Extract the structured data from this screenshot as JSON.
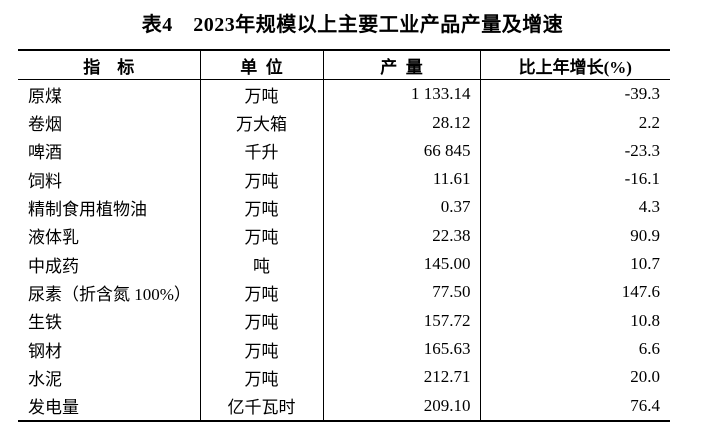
{
  "page": {
    "background_color": "#ffffff",
    "text_color": "#000000"
  },
  "title": "表4　2023年规模以上主要工业产品产量及增速",
  "table": {
    "headers": {
      "indicator": "指    标",
      "unit": "单  位",
      "output": "产  量",
      "growth": "比上年增长(%)"
    },
    "rows": [
      {
        "indicator": "原煤",
        "unit": "万吨",
        "output": "1 133.14",
        "growth": "-39.3"
      },
      {
        "indicator": "卷烟",
        "unit": "万大箱",
        "output": "28.12",
        "growth": "2.2"
      },
      {
        "indicator": "啤酒",
        "unit": "千升",
        "output": "66 845",
        "growth": "-23.3"
      },
      {
        "indicator": "饲料",
        "unit": "万吨",
        "output": "11.61",
        "growth": "-16.1"
      },
      {
        "indicator": "精制食用植物油",
        "unit": "万吨",
        "output": "0.37",
        "growth": "4.3"
      },
      {
        "indicator": "液体乳",
        "unit": "万吨",
        "output": "22.38",
        "growth": "90.9"
      },
      {
        "indicator": "中成药",
        "unit": "吨",
        "output": "145.00",
        "growth": "10.7"
      },
      {
        "indicator": "尿素（折含氮 100%）",
        "unit": "万吨",
        "output": "77.50",
        "growth": "147.6"
      },
      {
        "indicator": "生铁",
        "unit": "万吨",
        "output": "157.72",
        "growth": "10.8"
      },
      {
        "indicator": "钢材",
        "unit": "万吨",
        "output": "165.63",
        "growth": "6.6"
      },
      {
        "indicator": "水泥",
        "unit": "万吨",
        "output": "212.71",
        "growth": "20.0"
      },
      {
        "indicator": "发电量",
        "unit": "亿千瓦时",
        "output": "209.10",
        "growth": "76.4"
      }
    ]
  }
}
